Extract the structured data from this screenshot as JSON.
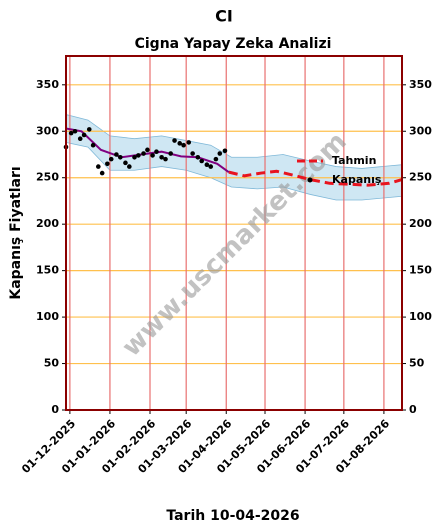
{
  "chart_data": {
    "type": "line",
    "title": "CI",
    "subtitle": "Cigna Yapay Zeka Analizi",
    "y_label": "Kapanış Fiyatları",
    "x_label": "Tarih 10-04-2026",
    "watermark": "www.uscmarket.com",
    "xlim": [
      "2025-11-28",
      "2026-08-15"
    ],
    "xticks": [
      {
        "value": "2025-12-01",
        "label": "01-12-2025"
      },
      {
        "value": "2026-01-01",
        "label": "01-01-2026"
      },
      {
        "value": "2026-02-01",
        "label": "01-02-2026"
      },
      {
        "value": "2026-03-01",
        "label": "01-03-2026"
      },
      {
        "value": "2026-04-01",
        "label": "01-04-2026"
      },
      {
        "value": "2026-05-01",
        "label": "01-05-2026"
      },
      {
        "value": "2026-06-01",
        "label": "01-06-2026"
      },
      {
        "value": "2026-07-01",
        "label": "01-07-2026"
      },
      {
        "value": "2026-08-01",
        "label": "01-08-2026"
      }
    ],
    "ylim": [
      0,
      381
    ],
    "yticks": [
      0,
      50,
      100,
      150,
      200,
      250,
      300,
      350
    ],
    "grid": true,
    "legend": "right",
    "band": {
      "color": "#a8d4ea",
      "x": [
        "2025-11-28",
        "2025-12-15",
        "2026-01-01",
        "2026-01-20",
        "2026-02-10",
        "2026-03-01",
        "2026-03-20",
        "2026-04-05",
        "2026-04-25",
        "2026-05-15",
        "2026-06-05",
        "2026-06-25",
        "2026-07-15",
        "2026-08-15"
      ],
      "upper": [
        318,
        312,
        295,
        292,
        295,
        290,
        285,
        272,
        272,
        275,
        268,
        262,
        260,
        264
      ],
      "lower": [
        288,
        283,
        258,
        258,
        262,
        258,
        250,
        240,
        238,
        240,
        232,
        226,
        226,
        230
      ]
    },
    "series": [
      {
        "name": "Tahmin",
        "color": "#e8141e",
        "style": "dashed",
        "x": [
          "2026-04-03",
          "2026-04-15",
          "2026-04-28",
          "2026-05-10",
          "2026-05-22",
          "2026-06-05",
          "2026-06-20",
          "2026-07-05",
          "2026-07-20",
          "2026-08-05",
          "2026-08-15"
        ],
        "values": [
          256,
          252,
          255,
          257,
          253,
          248,
          244,
          243,
          242,
          244,
          248
        ]
      },
      {
        "name": "Kapanış",
        "color": "#000000",
        "style": "dots",
        "x": [
          "2025-11-28",
          "2025-12-02",
          "2025-12-05",
          "2025-12-09",
          "2025-12-12",
          "2025-12-16",
          "2025-12-19",
          "2025-12-23",
          "2025-12-26",
          "2025-12-30",
          "2026-01-02",
          "2026-01-06",
          "2026-01-09",
          "2026-01-13",
          "2026-01-16",
          "2026-01-20",
          "2026-01-23",
          "2026-01-27",
          "2026-01-30",
          "2026-02-03",
          "2026-02-06",
          "2026-02-10",
          "2026-02-13",
          "2026-02-17",
          "2026-02-20",
          "2026-02-24",
          "2026-02-27",
          "2026-03-03",
          "2026-03-06",
          "2026-03-10",
          "2026-03-13",
          "2026-03-17",
          "2026-03-20",
          "2026-03-24",
          "2026-03-27",
          "2026-03-31"
        ],
        "values": [
          283,
          298,
          300,
          292,
          296,
          302,
          285,
          262,
          255,
          265,
          270,
          275,
          272,
          266,
          262,
          272,
          274,
          276,
          280,
          274,
          278,
          272,
          270,
          276,
          290,
          287,
          285,
          288,
          276,
          272,
          268,
          264,
          262,
          270,
          276,
          279
        ]
      },
      {
        "color": "#800080",
        "style": "solid",
        "x": [
          "2025-11-28",
          "2025-12-10",
          "2025-12-25",
          "2026-01-10",
          "2026-01-25",
          "2026-02-10",
          "2026-02-25",
          "2026-03-10",
          "2026-03-25",
          "2026-04-03"
        ],
        "values": [
          303,
          300,
          280,
          272,
          275,
          278,
          273,
          272,
          265,
          256
        ]
      }
    ]
  }
}
